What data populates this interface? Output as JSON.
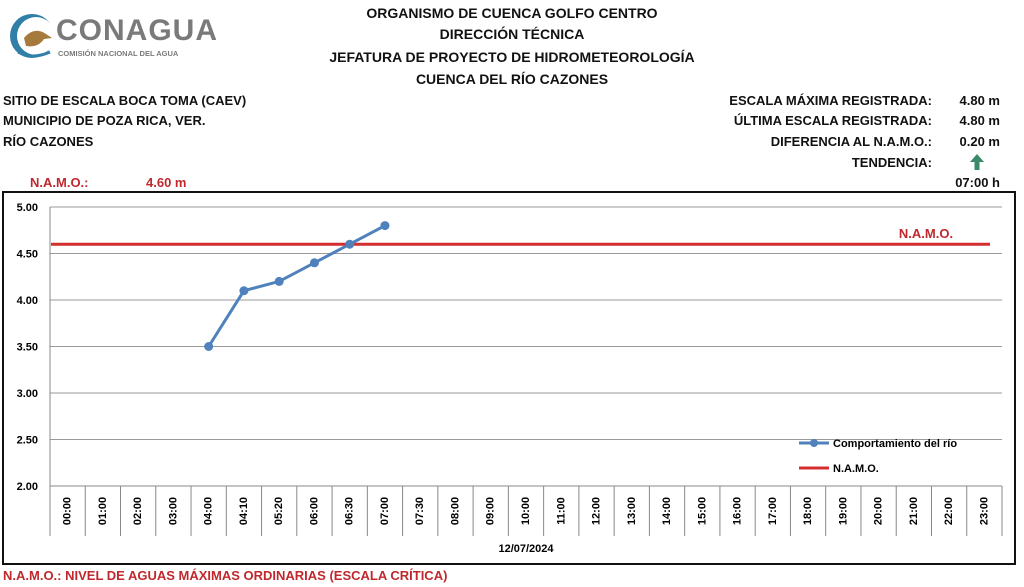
{
  "logo": {
    "name": "CONAGUA",
    "subtitle": "COMISIÓN NACIONAL DEL AGUA",
    "icon": "conagua-bird-logo-icon"
  },
  "header": {
    "lines": [
      "ORGANISMO DE CUENCA GOLFO CENTRO",
      "DIRECCIÓN TÉCNICA",
      "JEFATURA DE PROYECTO DE HIDROMETEOROLOGÍA",
      "CUENCA DEL RÍO CAZONES"
    ]
  },
  "site": {
    "station": "SITIO DE ESCALA BOCA TOMA (CAEV)",
    "municipality": "MUNICIPIO DE POZA RICA, VER.",
    "river": "RÍO CAZONES"
  },
  "stats": {
    "max_label": "ESCALA MÁXIMA REGISTRADA:",
    "max_value": "4.80 m",
    "last_label": "ÚLTIMA ESCALA REGISTRADA:",
    "last_value": "4.80 m",
    "diff_label": "DIFERENCIA AL N.A.M.O.:",
    "diff_value": "0.20 m",
    "trend_label": "TENDENCIA:",
    "trend_icon": "up-arrow-icon",
    "trend_color": "#3a8a6a",
    "time": "07:00 h"
  },
  "namo": {
    "label": "N.A.M.O.:",
    "value": "4.60 m"
  },
  "footer": {
    "note": "N.A.M.O.: NIVEL DE AGUAS MÁXIMAS ORDINARIAS (ESCALA CRÍTICA)"
  },
  "chart_data": {
    "type": "line",
    "categories": [
      "00:00",
      "01:00",
      "02:00",
      "03:00",
      "04:00",
      "04:10",
      "05:20",
      "06:00",
      "06:30",
      "07:00",
      "07:30",
      "08:00",
      "09:00",
      "10:00",
      "11:00",
      "12:00",
      "13:00",
      "14:00",
      "15:00",
      "16:00",
      "17:00",
      "18:00",
      "19:00",
      "20:00",
      "21:00",
      "22:00",
      "23:00"
    ],
    "series": [
      {
        "name": "Comportamiento del río",
        "color": "#4f81bd",
        "values": [
          null,
          null,
          null,
          null,
          3.5,
          4.1,
          4.2,
          4.4,
          4.6,
          4.8,
          null,
          null,
          null,
          null,
          null,
          null,
          null,
          null,
          null,
          null,
          null,
          null,
          null,
          null,
          null,
          null,
          null
        ]
      },
      {
        "name": "N.A.M.O.",
        "color": "#d32f2f",
        "constant": 4.6,
        "label": "N.A.M.O."
      }
    ],
    "yticks": [
      "2.00",
      "2.50",
      "3.00",
      "3.50",
      "4.00",
      "4.50",
      "5.00"
    ],
    "ylim": [
      2.0,
      5.0
    ],
    "xlabel": "12/07/2024",
    "grid": true,
    "legend_position": "bottom-right"
  }
}
